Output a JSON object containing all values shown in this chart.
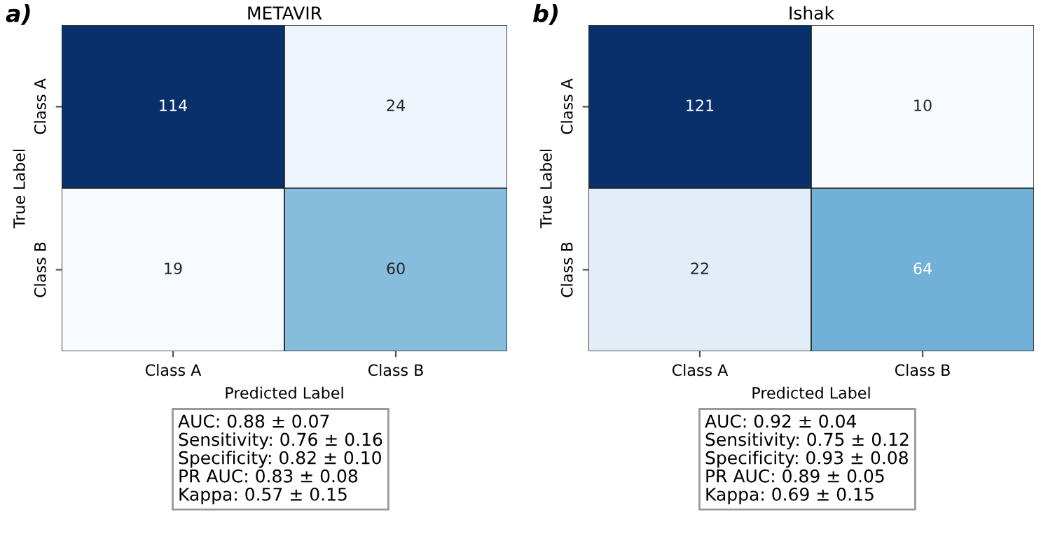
{
  "chart_data": [
    {
      "type": "heatmap",
      "title": "METAVIR",
      "xlabel": "Predicted Label",
      "ylabel": "True Label",
      "categories": [
        "Class A",
        "Class B"
      ],
      "y_categories": [
        "Class A",
        "Class B"
      ],
      "cells": [
        [
          114,
          24
        ],
        [
          19,
          60
        ]
      ],
      "data_labels": true,
      "annotations": [
        "a)",
        "AUC: 0.88 ± 0.07",
        "Sensitivity: 0.76 ± 0.16",
        "Specificity: 0.82 ± 0.10",
        "PR AUC: 0.83 ± 0.08",
        "Kappa: 0.57 ± 0.15"
      ]
    },
    {
      "type": "heatmap",
      "title": "Ishak",
      "xlabel": "Predicted Label",
      "ylabel": "True Label",
      "categories": [
        "Class A",
        "Class B"
      ],
      "y_categories": [
        "Class A",
        "Class B"
      ],
      "cells": [
        [
          121,
          10
        ],
        [
          22,
          64
        ]
      ],
      "data_labels": true,
      "annotations": [
        "b)",
        "AUC: 0.92 ± 0.04",
        "Sensitivity: 0.75 ± 0.12",
        "Specificity: 0.93 ± 0.08",
        "PR AUC: 0.89 ± 0.05",
        "Kappa: 0.69 ± 0.15"
      ]
    }
  ]
}
